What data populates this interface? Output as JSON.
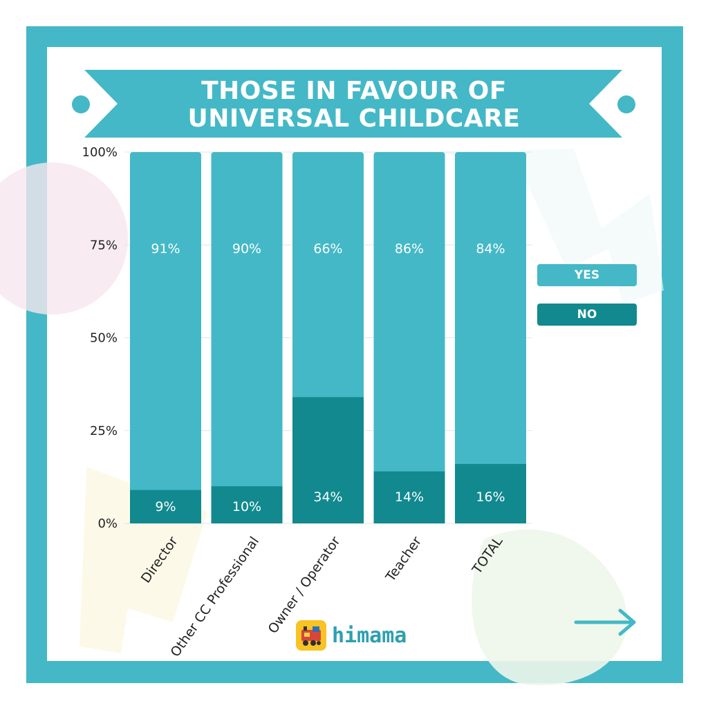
{
  "title_lines": [
    "THOSE IN FAVOUR OF",
    "UNIVERSAL CHILDCARE"
  ],
  "legend": {
    "yes": "YES",
    "no": "NO"
  },
  "logo_text": "himama",
  "icons": {
    "arrow": "arrow-right-icon",
    "logo": "train-icon"
  },
  "colors": {
    "frame": "#44b8c6",
    "yes": "#44b8c6",
    "no": "#11898f",
    "axis_text": "#222222"
  },
  "chart_data": {
    "type": "bar",
    "stacked": true,
    "title": "THOSE IN FAVOUR OF UNIVERSAL CHILDCARE",
    "categories": [
      "Director",
      "Other CC Professional",
      "Owner / Operator",
      "Teacher",
      "TOTAL"
    ],
    "series": [
      {
        "name": "NO",
        "values": [
          9,
          10,
          34,
          14,
          16
        ],
        "labels": [
          "9%",
          "10%",
          "34%",
          "14%",
          "16%"
        ]
      },
      {
        "name": "YES",
        "values": [
          91,
          90,
          66,
          86,
          84
        ],
        "labels": [
          "91%",
          "90%",
          "66%",
          "86%",
          "84%"
        ]
      }
    ],
    "yticks": [
      "0%",
      "25%",
      "50%",
      "75%",
      "100%"
    ],
    "ytick_values": [
      0,
      25,
      50,
      75,
      100
    ],
    "ylim": [
      0,
      100
    ],
    "grid": true,
    "legend_position": "right"
  }
}
